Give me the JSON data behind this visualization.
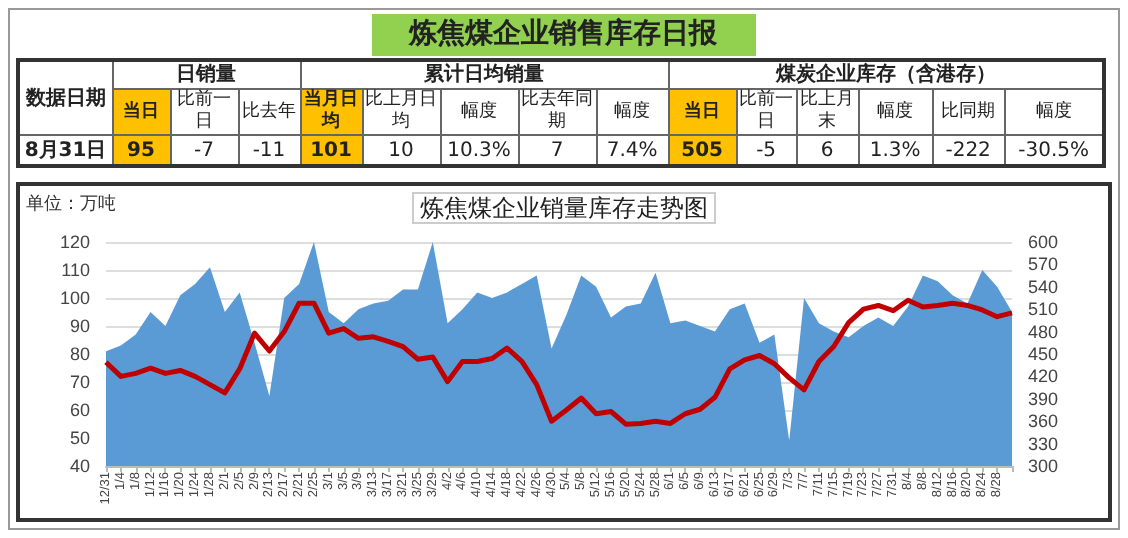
{
  "chart_data": [
    {
      "type": "other",
      "title": "炼焦煤企业销售库存日报",
      "annotations": [
        "数据日期",
        "日销量",
        "累计日均销量",
        "煤炭企业库存（含港存）",
        "当日",
        "比前一日",
        "比去年",
        "当月日均",
        "比上月日均",
        "幅度",
        "比去年同期",
        "幅度",
        "当日",
        "比前一日",
        "比上月末",
        "幅度",
        "比同期",
        "幅度",
        "8月31日",
        "95",
        "-7",
        "-11",
        "101",
        "10",
        "10.3%",
        "7",
        "7.4%",
        "505",
        "-5",
        "6",
        "1.3%",
        "-222",
        "-30.5%"
      ]
    },
    {
      "type": "area",
      "title": "炼焦煤企业销量库存走势图",
      "ylabel": "单位：万吨",
      "grid": "y",
      "categories": [
        "12/31",
        "1/4",
        "1/8",
        "1/12",
        "1/16",
        "1/20",
        "1/24",
        "1/28",
        "2/1",
        "2/5",
        "2/9",
        "2/13",
        "2/17",
        "2/21",
        "2/25",
        "3/1",
        "3/5",
        "3/9",
        "3/13",
        "3/17",
        "3/21",
        "3/25",
        "3/29",
        "4/2",
        "4/6",
        "4/10",
        "4/14",
        "4/18",
        "4/22",
        "4/26",
        "4/30",
        "5/4",
        "5/8",
        "5/12",
        "5/16",
        "5/20",
        "5/24",
        "5/28",
        "6/1",
        "6/5",
        "6/9",
        "6/13",
        "6/17",
        "6/21",
        "6/25",
        "6/29",
        "7/3",
        "7/7",
        "7/11",
        "7/15",
        "7/19",
        "7/23",
        "7/27",
        "7/31",
        "8/4",
        "8/8",
        "8/12",
        "8/16",
        "8/20",
        "8/24",
        "8/28",
        null
      ],
      "ylim": [
        40,
        120
      ],
      "yticks": [
        40,
        50,
        60,
        70,
        80,
        90,
        100,
        110,
        120
      ],
      "y2lim": [
        300,
        600
      ],
      "y2ticks": [
        300,
        330,
        360,
        390,
        420,
        450,
        480,
        510,
        540,
        570,
        600
      ],
      "series": [
        {
          "type": "area",
          "color": "#5b9bd5",
          "values": [
            81,
            83,
            87,
            95,
            90,
            101,
            105,
            111,
            95,
            102,
            84,
            65,
            100,
            105,
            120,
            95,
            91,
            96,
            98,
            99,
            103,
            103,
            120,
            91,
            96,
            102,
            100,
            102,
            105,
            108,
            82,
            94,
            108,
            104,
            93,
            97,
            98,
            109,
            91,
            92,
            90,
            88,
            96,
            98,
            84,
            87,
            49,
            100,
            91,
            88,
            86,
            90,
            93,
            90,
            97,
            108,
            106,
            101,
            98,
            110,
            104,
            95
          ]
        },
        {
          "type": "line",
          "axis": "y2",
          "color": "#c00000",
          "values": [
            439,
            420,
            424,
            431,
            424,
            428,
            420,
            409,
            398,
            430,
            478,
            454,
            480,
            518,
            518,
            478,
            484,
            471,
            473,
            467,
            460,
            443,
            446,
            413,
            440,
            440,
            444,
            458,
            440,
            409,
            360,
            375,
            391,
            370,
            373,
            356,
            357,
            360,
            357,
            370,
            376,
            392,
            430,
            442,
            448,
            437,
            418,
            402,
            440,
            460,
            492,
            510,
            515,
            508,
            522,
            513,
            515,
            518,
            515,
            509,
            500,
            505
          ]
        }
      ]
    }
  ]
}
